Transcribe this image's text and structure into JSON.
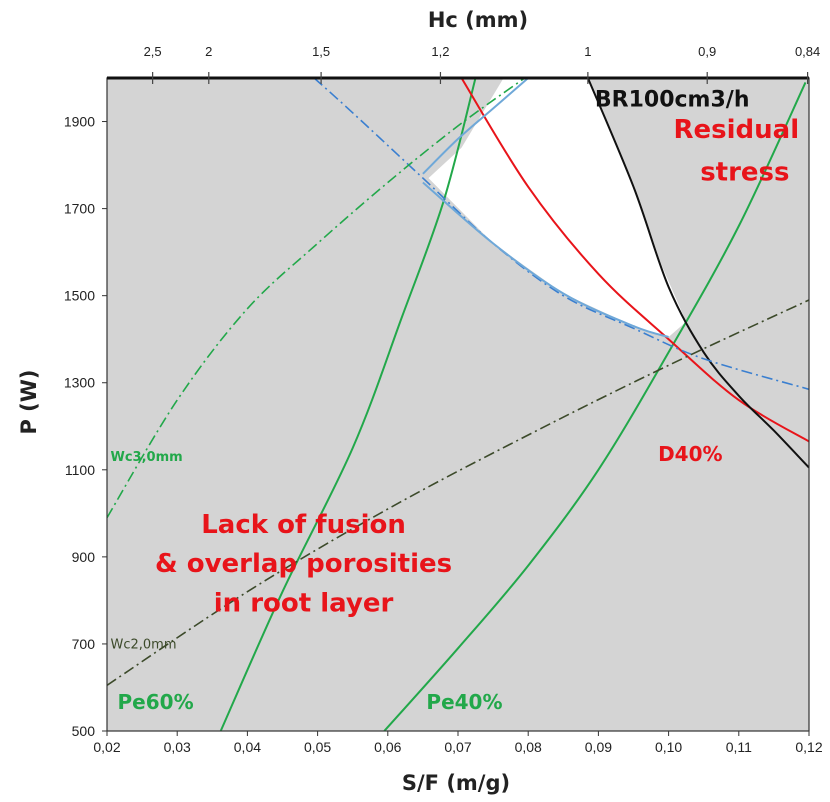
{
  "chart_data": {
    "type": "line",
    "xlabel": "S/F (m/g)",
    "ylabel": "P (W)",
    "top_axis_label": "Hc (mm)",
    "xlim": [
      0.02,
      0.12
    ],
    "ylim": [
      500,
      2000
    ],
    "x_ticks": [
      "0,02",
      "0,03",
      "0,04",
      "0,05",
      "0,06",
      "0,07",
      "0,08",
      "0,09",
      "0,10",
      "0,11",
      "0,12"
    ],
    "y_ticks": [
      "500",
      "700",
      "900",
      "1100",
      "1300",
      "1500",
      "1700",
      "1900"
    ],
    "top_ticks": [
      {
        "label": "2,5",
        "x": 0.0265
      },
      {
        "label": "2",
        "x": 0.0345
      },
      {
        "label": "1,5",
        "x": 0.0505
      },
      {
        "label": "1,2",
        "x": 0.0675
      },
      {
        "label": "1",
        "x": 0.0885
      },
      {
        "label": "0,9",
        "x": 0.1055
      },
      {
        "label": "0,84",
        "x": 0.1198
      }
    ],
    "grid": false,
    "background_color": "#d4d4d4",
    "process_window_color": "#ffffff",
    "series": [
      {
        "name": "Pe60%",
        "color": "#22a84a",
        "style": "solid",
        "points": [
          [
            0.0362,
            500
          ],
          [
            0.045,
            820
          ],
          [
            0.055,
            1150
          ],
          [
            0.062,
            1450
          ],
          [
            0.068,
            1720
          ],
          [
            0.0725,
            2000
          ]
        ]
      },
      {
        "name": "Pe40%",
        "color": "#22a84a",
        "style": "solid",
        "points": [
          [
            0.0595,
            500
          ],
          [
            0.07,
            690
          ],
          [
            0.08,
            880
          ],
          [
            0.09,
            1100
          ],
          [
            0.1,
            1370
          ],
          [
            0.11,
            1660
          ],
          [
            0.1195,
            1990
          ]
        ]
      },
      {
        "name": "D40%",
        "color": "#e8141a",
        "style": "solid",
        "points": [
          [
            0.0705,
            2000
          ],
          [
            0.08,
            1750
          ],
          [
            0.09,
            1550
          ],
          [
            0.1,
            1400
          ],
          [
            0.11,
            1260
          ],
          [
            0.12,
            1165
          ]
        ]
      },
      {
        "name": "BR100cm3/h",
        "color": "#111111",
        "style": "solid",
        "points": [
          [
            0.0885,
            2000
          ],
          [
            0.095,
            1750
          ],
          [
            0.1,
            1520
          ],
          [
            0.105,
            1370
          ],
          [
            0.11,
            1270
          ],
          [
            0.115,
            1190
          ],
          [
            0.12,
            1105
          ]
        ]
      },
      {
        "name": "",
        "color": "#3a7fd0",
        "style": "dashdot",
        "points": [
          [
            0.0495,
            2000
          ],
          [
            0.055,
            1920
          ],
          [
            0.065,
            1770
          ],
          [
            0.075,
            1620
          ],
          [
            0.085,
            1500
          ],
          [
            0.095,
            1425
          ],
          [
            0.105,
            1355
          ],
          [
            0.12,
            1285
          ]
        ]
      },
      {
        "name": "",
        "color": "#6fa8d8",
        "style": "solid",
        "points": [
          [
            0.065,
            1760
          ],
          [
            0.075,
            1620
          ],
          [
            0.085,
            1505
          ],
          [
            0.095,
            1430
          ],
          [
            0.1,
            1405
          ]
        ]
      },
      {
        "name": "",
        "color": "#6fa8d8",
        "style": "solid",
        "points": [
          [
            0.065,
            1780
          ],
          [
            0.07,
            1860
          ],
          [
            0.075,
            1930
          ],
          [
            0.08,
            2000
          ]
        ]
      },
      {
        "name": "Wc3,0mm",
        "color": "#22a84a",
        "style": "dashdot",
        "points": [
          [
            0.02,
            990
          ],
          [
            0.03,
            1260
          ],
          [
            0.04,
            1470
          ],
          [
            0.05,
            1620
          ],
          [
            0.06,
            1760
          ],
          [
            0.07,
            1890
          ],
          [
            0.0795,
            2000
          ]
        ]
      },
      {
        "name": "Wc2,0mm",
        "color": "#3c4a2a",
        "style": "dashdot",
        "points": [
          [
            0.02,
            605
          ],
          [
            0.04,
            820
          ],
          [
            0.06,
            1010
          ],
          [
            0.08,
            1180
          ],
          [
            0.1,
            1340
          ],
          [
            0.12,
            1490
          ]
        ]
      }
    ],
    "window_polygon": [
      [
        0.0658,
        1770
      ],
      [
        0.0705,
        1840
      ],
      [
        0.0765,
        2000
      ],
      [
        0.0885,
        2000
      ],
      [
        0.092,
        1870
      ],
      [
        0.095,
        1750
      ],
      [
        0.099,
        1570
      ],
      [
        0.1025,
        1440
      ],
      [
        0.1,
        1405
      ],
      [
        0.095,
        1430
      ],
      [
        0.085,
        1505
      ],
      [
        0.075,
        1620
      ]
    ],
    "annotations": [
      {
        "text": "BR100cm3/h",
        "x": 0.0895,
        "y": 1935,
        "color": "black",
        "size": 22
      },
      {
        "text": "Residual",
        "x": 0.1007,
        "y": 1862,
        "color": "red",
        "size": 26
      },
      {
        "text": "stress",
        "x": 0.1045,
        "y": 1765,
        "color": "red",
        "size": 26
      },
      {
        "text": "D40%",
        "x": 0.0985,
        "y": 1120,
        "color": "red",
        "size": 20
      },
      {
        "text": "Wc3,0mm",
        "x": 0.0205,
        "y": 1120,
        "color": "green",
        "size": 13
      },
      {
        "text": "Lack of fusion",
        "x": 0.048,
        "y": 955,
        "color": "red",
        "size": 26
      },
      {
        "text": "& overlap porosities",
        "x": 0.048,
        "y": 865,
        "color": "red",
        "size": 26
      },
      {
        "text": "in root layer",
        "x": 0.048,
        "y": 775,
        "color": "red",
        "size": 26
      },
      {
        "text": "Wc2,0mm",
        "x": 0.0205,
        "y": 690,
        "color": "olive",
        "size": 13
      },
      {
        "text": "Pe60%",
        "x": 0.0215,
        "y": 550,
        "color": "green",
        "size": 20
      },
      {
        "text": "Pe40%",
        "x": 0.0655,
        "y": 550,
        "color": "green",
        "size": 20
      }
    ]
  }
}
